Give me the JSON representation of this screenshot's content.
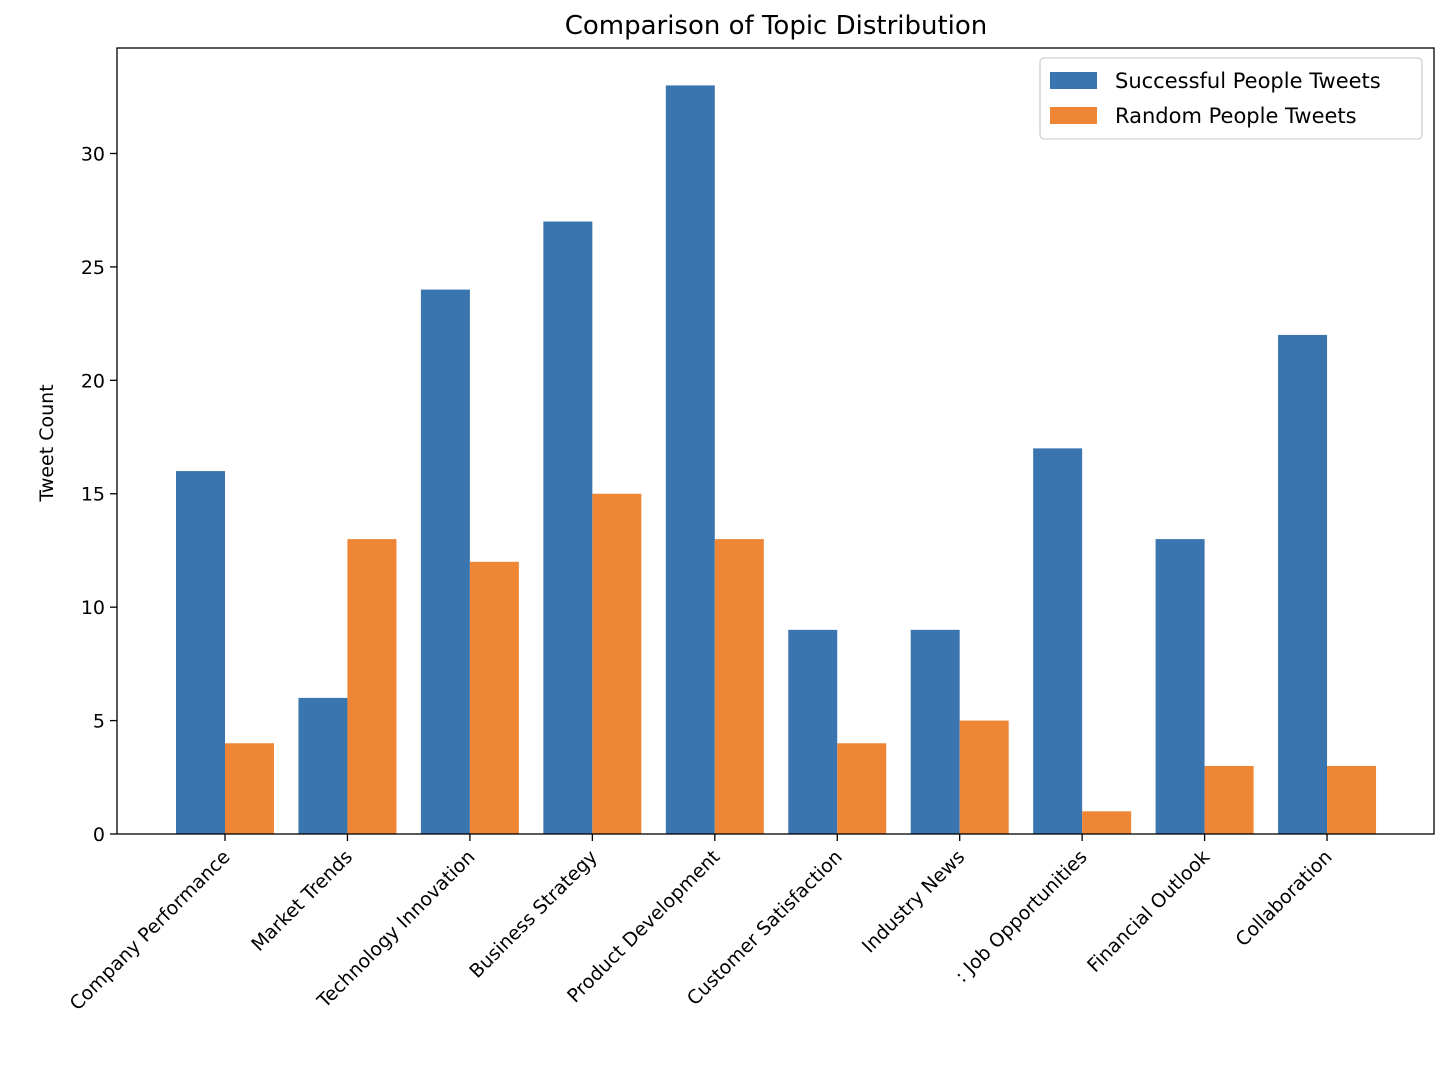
{
  "chart_data": {
    "type": "bar",
    "title": "Comparison of Topic Distribution",
    "xlabel": "",
    "ylabel": "Tweet Count",
    "ylim": [
      0,
      34.65
    ],
    "yticks": [
      0,
      5,
      10,
      15,
      20,
      25,
      30
    ],
    "grid": false,
    "legend_position": "top-right",
    "categories": [
      "Company Performance",
      "Market Trends",
      "Technology Innovation",
      "Business Strategy",
      "Product Development",
      "Customer Satisfaction",
      "Industry News",
      ": Job Opportunities",
      "Financial Outlook",
      "Collaboration"
    ],
    "series": [
      {
        "name": "Successful People Tweets",
        "color": "#3b75af",
        "values": [
          16,
          6,
          24,
          27,
          33,
          9,
          9,
          17,
          13,
          22
        ]
      },
      {
        "name": "Random People Tweets",
        "color": "#ef8636",
        "values": [
          4,
          13,
          12,
          15,
          13,
          4,
          5,
          1,
          3,
          3
        ]
      }
    ]
  }
}
